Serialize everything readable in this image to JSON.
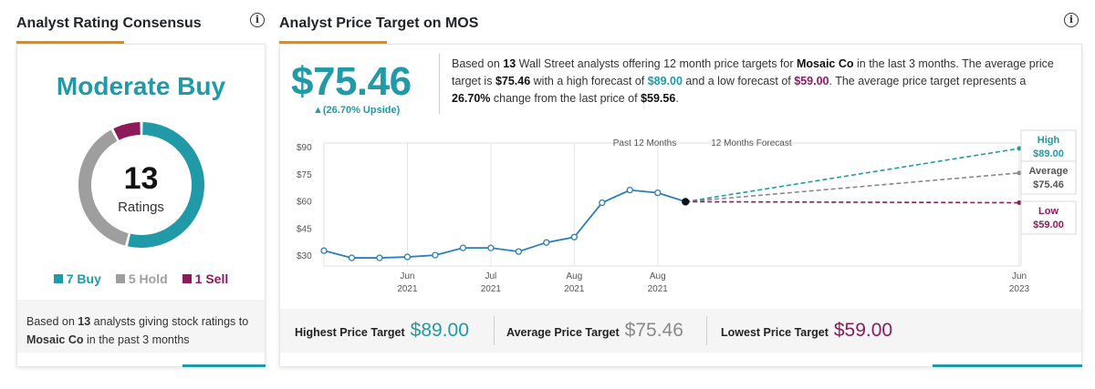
{
  "left": {
    "title": "Analyst Rating Consensus",
    "consensus": "Moderate Buy",
    "total_ratings": "13",
    "ratings_label": "Ratings",
    "segments": [
      {
        "name": "Buy",
        "count": 7,
        "color": "#1f9aa6"
      },
      {
        "name": "Hold",
        "count": 5,
        "color": "#9e9e9e"
      },
      {
        "name": "Sell",
        "count": 1,
        "color": "#8e1a5c"
      }
    ],
    "legend": [
      {
        "label": "7 Buy",
        "color": "#1f9aa6"
      },
      {
        "label": "5 Hold",
        "color": "#9e9e9e"
      },
      {
        "label": "1 Sell",
        "color": "#8e1a5c"
      }
    ],
    "footer_prefix": "Based on ",
    "footer_count": "13",
    "footer_mid": " analysts giving stock ratings to ",
    "footer_company": "Mosaic Co",
    "footer_suffix": " in the past 3 months"
  },
  "right": {
    "title": "Analyst Price Target on MOS",
    "avg_price": "$75.46",
    "upside": "▲(26.70% Upside)",
    "desc": {
      "p1": "Based on ",
      "count": "13",
      "p2": " Wall Street analysts offering 12 month price targets for ",
      "company": "Mosaic Co",
      "p3": " in the last 3 months. The average price target is ",
      "avg": "$75.46",
      "p4": " with a high forecast of ",
      "high": "$89.00",
      "p5": " and a low forecast of ",
      "low": "$59.00",
      "p6": ". The average price target represents a ",
      "change": "26.70%",
      "p7": " change from the last price of ",
      "last": "$59.56",
      "p8": "."
    },
    "bottom": {
      "highest_label": "Highest Price Target",
      "highest_value": "$89.00",
      "average_label": "Average Price Target",
      "average_value": "$75.46",
      "lowest_label": "Lowest Price Target",
      "lowest_value": "$59.00"
    }
  },
  "chart_data": {
    "type": "line",
    "period_labels": [
      "Past 12 Months",
      "12 Months Forecast"
    ],
    "y_ticks": [
      "$90",
      "$75",
      "$60",
      "$45",
      "$30"
    ],
    "y_tick_values": [
      90,
      75,
      60,
      45,
      30
    ],
    "ylim": [
      24,
      90
    ],
    "x_ticks": [
      {
        "month": "Jun",
        "year": "2021",
        "idx": 3
      },
      {
        "month": "Jul",
        "year": "2021",
        "idx": 6
      },
      {
        "month": "Aug",
        "year": "2021",
        "idx": 9
      },
      {
        "month": "Aug",
        "year": "2021",
        "idx": 12
      },
      {
        "month": "Jun",
        "year": "2023",
        "idx": 25
      }
    ],
    "history": [
      32.5,
      28.5,
      28.5,
      29,
      30,
      34,
      34,
      32,
      37,
      40,
      59,
      66,
      64.5,
      59.56
    ],
    "forecast": [
      {
        "name": "High",
        "value": "$89.00",
        "y": 89.0,
        "color": "#1f9aa6"
      },
      {
        "name": "Average",
        "value": "$75.46",
        "y": 75.46,
        "color": "#8a8a8a"
      },
      {
        "name": "Low",
        "value": "$59.00",
        "y": 59.0,
        "color": "#8e1a5c"
      }
    ],
    "line_color": "#2a7fb8"
  }
}
